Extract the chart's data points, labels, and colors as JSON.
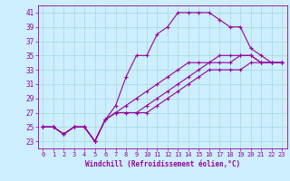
{
  "xlabel": "Windchill (Refroidissement éolien,°C)",
  "background_color": "#cceeff",
  "grid_color": "#aadddd",
  "line_color": "#990099",
  "xlim": [
    -0.5,
    23.5
  ],
  "ylim": [
    22,
    42
  ],
  "xticks": [
    0,
    1,
    2,
    3,
    4,
    5,
    6,
    7,
    8,
    9,
    10,
    11,
    12,
    13,
    14,
    15,
    16,
    17,
    18,
    19,
    20,
    21,
    22,
    23
  ],
  "yticks": [
    23,
    25,
    27,
    29,
    31,
    33,
    35,
    37,
    39,
    41
  ],
  "series1": [
    25,
    25,
    24,
    25,
    25,
    23,
    26,
    28,
    32,
    35,
    35,
    38,
    39,
    41,
    41,
    41,
    41,
    40,
    39,
    39,
    36,
    35,
    34,
    34
  ],
  "series2": [
    25,
    25,
    24,
    25,
    25,
    23,
    26,
    27,
    28,
    29,
    30,
    31,
    32,
    33,
    34,
    34,
    34,
    35,
    35,
    35,
    35,
    34,
    34,
    34
  ],
  "series3": [
    25,
    25,
    24,
    25,
    25,
    23,
    26,
    27,
    27,
    27,
    28,
    29,
    30,
    31,
    32,
    33,
    34,
    34,
    34,
    35,
    35,
    34,
    34,
    34
  ],
  "series4": [
    25,
    25,
    24,
    25,
    25,
    23,
    26,
    27,
    27,
    27,
    27,
    28,
    29,
    30,
    31,
    32,
    33,
    33,
    33,
    33,
    34,
    34,
    34,
    34
  ],
  "xlabel_fontsize": 5.5,
  "tick_fontsize": 5,
  "marker_size": 3,
  "linewidth": 0.8
}
